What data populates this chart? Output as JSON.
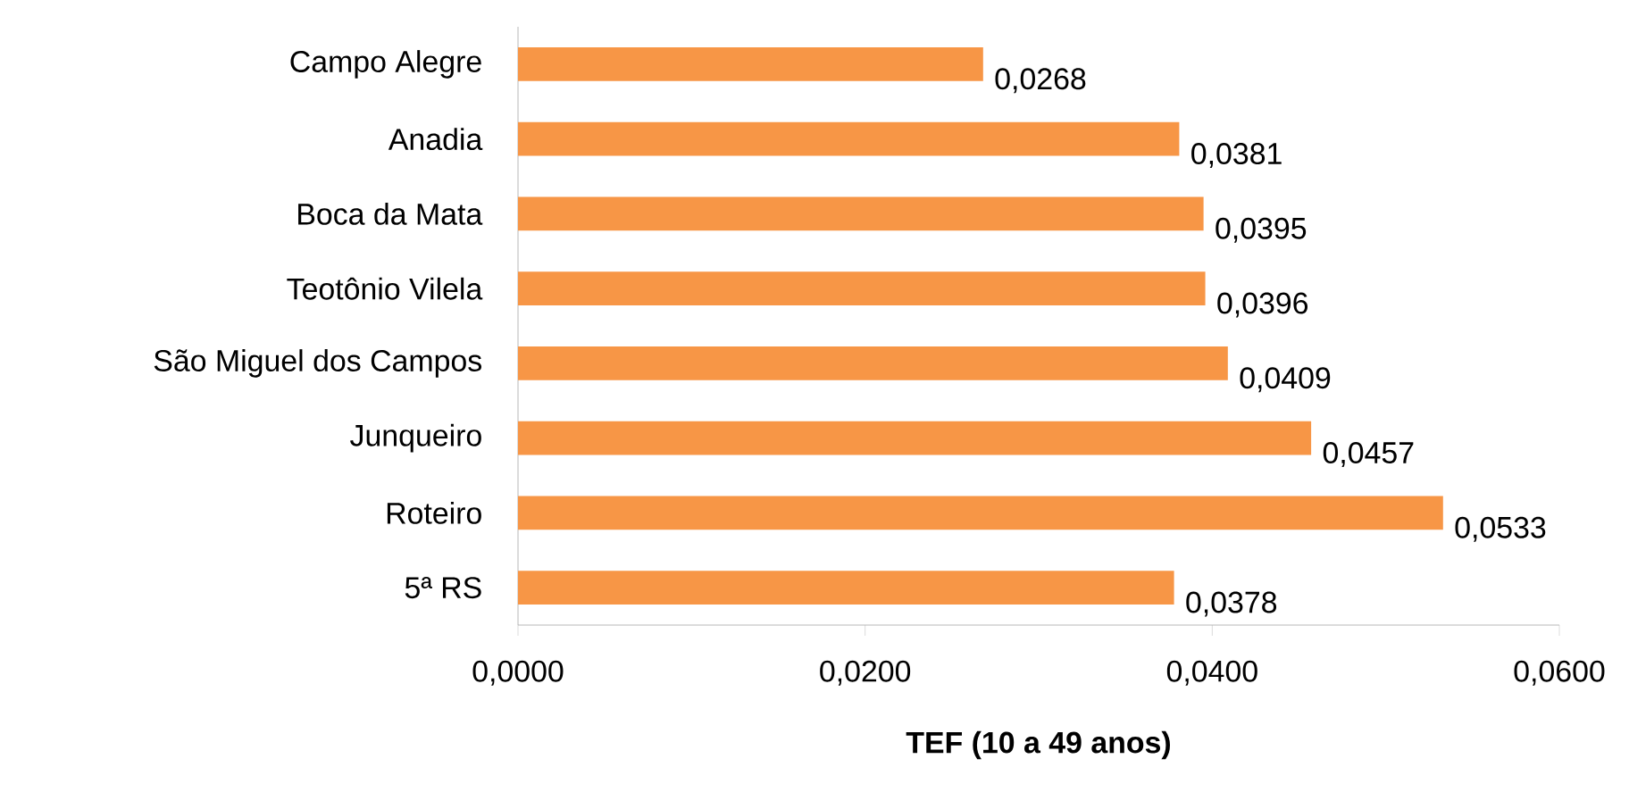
{
  "chart_data": {
    "type": "bar",
    "orientation": "horizontal",
    "categories": [
      "Campo Alegre",
      "Anadia",
      "Boca da Mata",
      "Teotônio Vilela",
      "São Miguel dos Campos",
      "Junqueiro",
      "Roteiro",
      "5ª RS"
    ],
    "values": [
      0.0268,
      0.0381,
      0.0395,
      0.0396,
      0.0409,
      0.0457,
      0.0533,
      0.0378
    ],
    "value_labels": [
      "0,0268",
      "0,0381",
      "0,0395",
      "0,0396",
      "0,0409",
      "0,0457",
      "0,0533",
      "0,0378"
    ],
    "color": "#f79646",
    "xlim": [
      0,
      0.06
    ],
    "xticks": [
      {
        "value": 0,
        "label": "0,0000"
      },
      {
        "value": 0.02,
        "label": "0,0200"
      },
      {
        "value": 0.04,
        "label": "0,0400"
      },
      {
        "value": 0.06,
        "label": "0,0600"
      }
    ],
    "xlabel": "TEF (10 a 49 anos)"
  }
}
